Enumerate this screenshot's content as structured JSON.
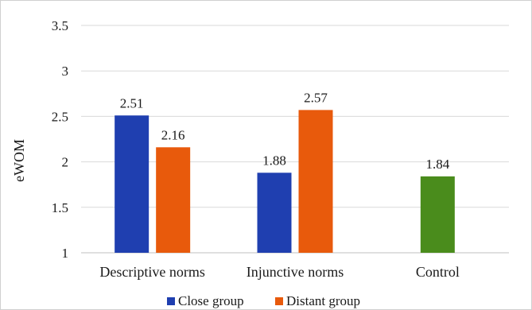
{
  "chart_data": {
    "type": "bar",
    "title": "",
    "xlabel": "",
    "ylabel": "eWOM",
    "ylim": [
      1,
      3.5
    ],
    "yticks": [
      "1",
      "1.5",
      "2",
      "2.5",
      "3",
      "3.5"
    ],
    "grid": "horizontal",
    "legend_position": "bottom",
    "categories": [
      "Descriptive norms",
      "Injunctive norms",
      "Control"
    ],
    "series": [
      {
        "name": "Close group",
        "color": "#1f3fb0",
        "values": [
          2.51,
          1.88,
          null
        ]
      },
      {
        "name": "Distant group",
        "color": "#e85a0c",
        "values": [
          2.16,
          2.57,
          null
        ]
      },
      {
        "name": "",
        "color": "#4a8c1c",
        "values": [
          null,
          null,
          1.84
        ]
      }
    ],
    "data_labels": [
      {
        "category": 0,
        "series": 0,
        "text": "2.51"
      },
      {
        "category": 0,
        "series": 1,
        "text": "2.16"
      },
      {
        "category": 1,
        "series": 0,
        "text": "1.88"
      },
      {
        "category": 1,
        "series": 1,
        "text": "2.57"
      },
      {
        "category": 2,
        "series": 2,
        "text": "1.84"
      }
    ],
    "legend": [
      {
        "label": "Close group",
        "color": "#1f3fb0"
      },
      {
        "label": "Distant group",
        "color": "#e85a0c"
      }
    ]
  }
}
